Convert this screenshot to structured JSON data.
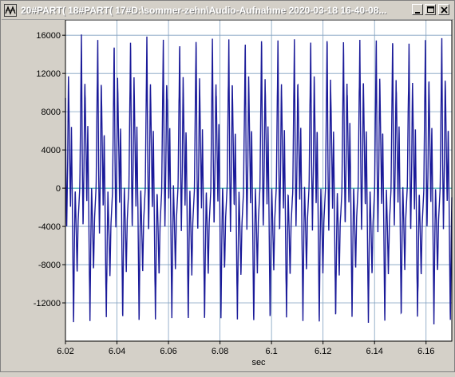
{
  "window": {
    "title": "20#PART( 18#PART( 17#D:\\sommer-zehn\\Audio-Aufnahme 2020-03-18 16-40-08...",
    "app_icon": "chart-icon",
    "buttons": [
      "minimize-icon",
      "maximize-icon",
      "close-icon"
    ]
  },
  "colors": {
    "signal": "#1a1a99",
    "zero_line": "#20a0a0",
    "grid": "#7f9fbf",
    "background": "#ffffff"
  },
  "chart_data": {
    "type": "line",
    "title": "",
    "xlabel": "sec",
    "ylabel": "",
    "xlim": [
      6.02,
      6.17
    ],
    "ylim": [
      -16000,
      17600
    ],
    "xticks": [
      "6.02",
      "6.04",
      "6.06",
      "6.08",
      "6.1",
      "6.12",
      "6.14",
      "6.16"
    ],
    "xtick_values": [
      6.02,
      6.04,
      6.06,
      6.08,
      6.1,
      6.12,
      6.14,
      6.16
    ],
    "yticks": [
      "16000",
      "12000",
      "8000",
      "4000",
      "0",
      "-4000",
      "-8000",
      "-12000"
    ],
    "ytick_values": [
      16000,
      12000,
      8000,
      4000,
      0,
      -4000,
      -8000,
      -12000
    ],
    "grid": true,
    "series": [
      {
        "waveform": "periodic",
        "period": 0.00636,
        "cycles_visible": 23.6,
        "max": 16600,
        "min": -14800,
        "shape": [
          {
            "phase": 0.0,
            "value": 0
          },
          {
            "phase": 0.05,
            "value": 8000
          },
          {
            "phase": 0.1,
            "value": 16300
          },
          {
            "phase": 0.15,
            "value": 3000
          },
          {
            "phase": 0.2,
            "value": -4500
          },
          {
            "phase": 0.26,
            "value": 2500
          },
          {
            "phase": 0.31,
            "value": 12000
          },
          {
            "phase": 0.37,
            "value": 5000
          },
          {
            "phase": 0.43,
            "value": -2000
          },
          {
            "phase": 0.49,
            "value": 6500
          },
          {
            "phase": 0.55,
            "value": -2500
          },
          {
            "phase": 0.62,
            "value": -14500
          },
          {
            "phase": 0.67,
            "value": -6000
          },
          {
            "phase": 0.72,
            "value": 0
          },
          {
            "phase": 0.78,
            "value": -4000
          },
          {
            "phase": 0.84,
            "value": -9000
          },
          {
            "phase": 0.9,
            "value": -3500
          },
          {
            "phase": 1.0,
            "value": 0
          }
        ]
      }
    ]
  }
}
